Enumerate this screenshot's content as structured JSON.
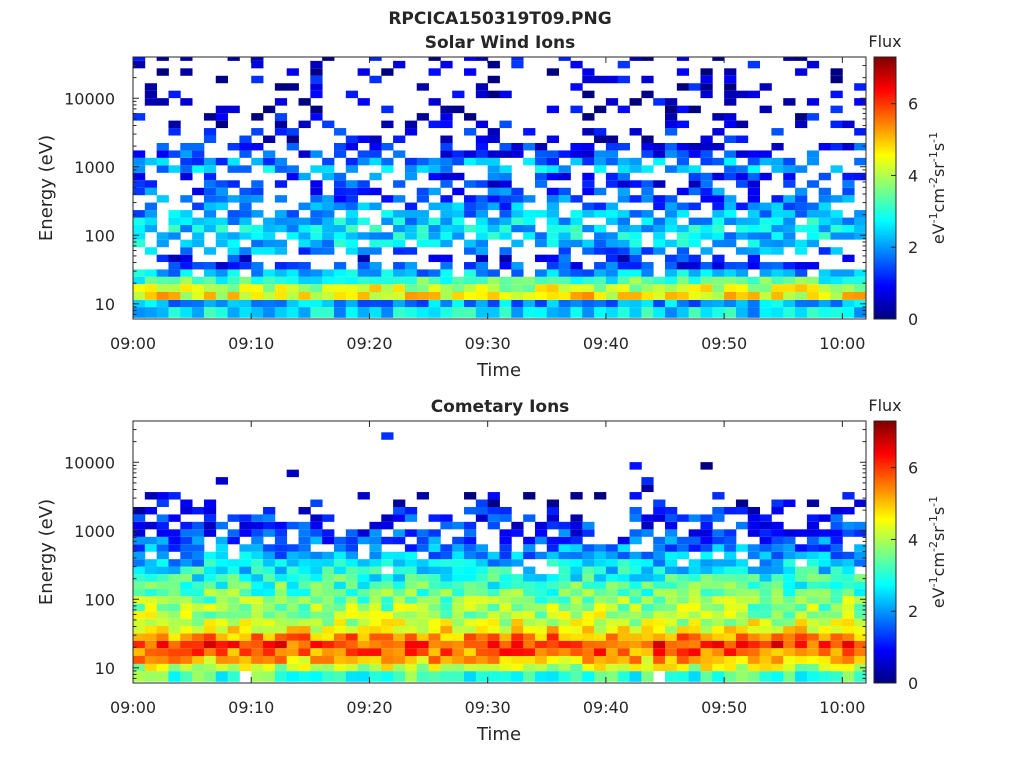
{
  "figure_title": "RPCICA150319T09.PNG",
  "colors": {
    "colormap": [
      "#00007f",
      "#0000ff",
      "#007fff",
      "#00ffff",
      "#7fff7f",
      "#ffff00",
      "#ff7f00",
      "#ff0000",
      "#7f0000"
    ]
  },
  "chart_data": [
    {
      "type": "heatmap",
      "title": "Solar Wind Ions",
      "xlabel": "Time",
      "ylabel": "Energy (eV)",
      "x_ticks": [
        "09:00",
        "09:10",
        "09:20",
        "09:30",
        "09:40",
        "09:50",
        "10:00"
      ],
      "xlim": [
        "09:00",
        "10:02"
      ],
      "y_scale": "log",
      "y_ticks": [
        "10",
        "100",
        "1000",
        "10000"
      ],
      "ylim": [
        6,
        40000
      ],
      "colorbar": {
        "title": "Flux",
        "label": "eV-1cm-2sr-1s-1",
        "ticks": [
          "0",
          "2",
          "4",
          "6"
        ],
        "range": [
          0,
          7.3
        ]
      },
      "columns": 62,
      "energy_bins": [
        8,
        10,
        13,
        17,
        22,
        28,
        36,
        46,
        59,
        76,
        98,
        125,
        160,
        205,
        265,
        340,
        435,
        560,
        720,
        925,
        1190,
        1530,
        1960,
        2520,
        3240,
        4160,
        5350,
        6880,
        8840,
        11400,
        14600,
        18800,
        24100,
        31000,
        39800
      ],
      "profile": [
        2.5,
        2.1,
        4.6,
        4.2,
        3.2,
        2.2,
        1.3,
        1.1,
        1.9,
        2.3,
        2.4,
        2.5,
        2.4,
        2.1,
        1.8,
        1.6,
        1.4,
        1.2,
        1.4,
        2.2,
        1.9,
        1.3,
        1.0,
        0.8,
        0.9,
        0.7,
        0.6,
        0.5,
        0.6,
        0.5,
        0.5,
        0.6,
        0.5,
        0.6,
        0.5
      ],
      "presence": [
        1.0,
        1.0,
        1.0,
        1.0,
        1.0,
        0.9,
        0.65,
        0.45,
        0.6,
        0.75,
        0.85,
        0.85,
        0.85,
        0.8,
        0.7,
        0.6,
        0.5,
        0.45,
        0.5,
        0.7,
        0.7,
        0.5,
        0.4,
        0.3,
        0.3,
        0.25,
        0.22,
        0.2,
        0.22,
        0.2,
        0.2,
        0.2,
        0.2,
        0.2,
        0.2
      ]
    },
    {
      "type": "heatmap",
      "title": "Cometary Ions",
      "xlabel": "Time",
      "ylabel": "Energy (eV)",
      "x_ticks": [
        "09:00",
        "09:10",
        "09:20",
        "09:30",
        "09:40",
        "09:50",
        "10:00"
      ],
      "xlim": [
        "09:00",
        "10:02"
      ],
      "y_scale": "log",
      "y_ticks": [
        "10",
        "100",
        "1000",
        "10000"
      ],
      "ylim": [
        6,
        40000
      ],
      "colorbar": {
        "title": "Flux",
        "label": "eV-1cm-2sr-1s-1",
        "ticks": [
          "0",
          "2",
          "4",
          "6"
        ],
        "range": [
          0,
          7.3
        ]
      },
      "columns": 62,
      "energy_bins": [
        8,
        10,
        13,
        17,
        22,
        28,
        36,
        46,
        59,
        76,
        98,
        125,
        160,
        205,
        265,
        340,
        435,
        560,
        720,
        925,
        1190,
        1530,
        1960,
        2520,
        3240,
        4160,
        5350,
        6880,
        8840,
        11400,
        14600,
        18800,
        24100,
        31000,
        39800
      ],
      "profile": [
        3.2,
        4.2,
        5.0,
        5.6,
        6.0,
        5.4,
        4.6,
        4.2,
        4.0,
        3.8,
        3.7,
        3.4,
        3.2,
        3.0,
        2.7,
        2.4,
        2.1,
        1.8,
        1.5,
        1.3,
        1.2,
        1.1,
        0.9,
        0.7,
        0.6,
        0.5,
        0.5,
        0.5,
        0.5,
        0.5,
        0.5,
        0.5,
        0.5,
        0.5,
        0.5
      ],
      "presence": [
        0.95,
        1.0,
        1.0,
        1.0,
        1.0,
        1.0,
        1.0,
        1.0,
        1.0,
        1.0,
        1.0,
        1.0,
        1.0,
        1.0,
        0.95,
        0.9,
        0.85,
        0.8,
        0.7,
        0.6,
        0.5,
        0.4,
        0.3,
        0.2,
        0.15,
        0.02,
        0.02,
        0.02,
        0.01,
        0.01,
        0.01,
        0.01,
        0.01,
        0.01,
        0.01
      ]
    }
  ]
}
